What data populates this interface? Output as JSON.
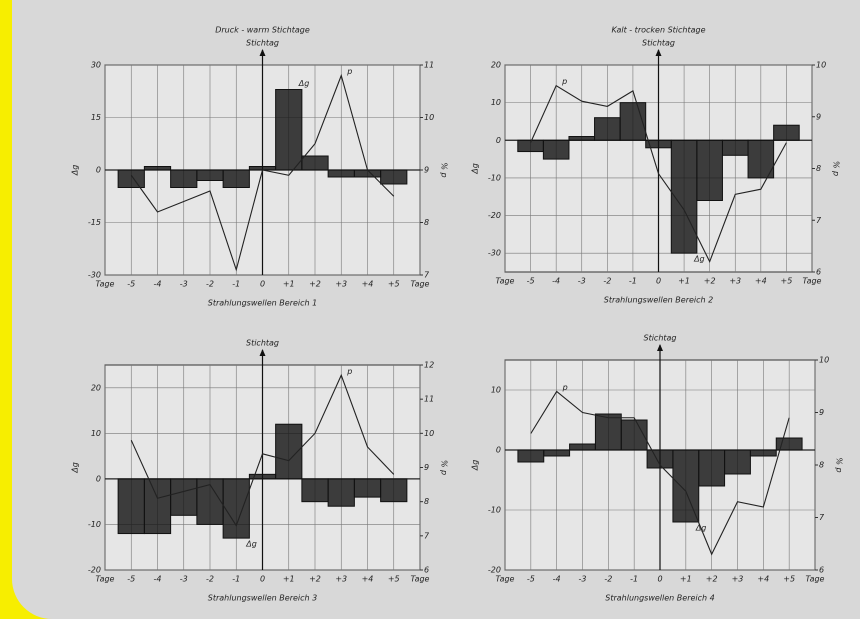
{
  "chart_data": [
    {
      "type": "line",
      "title": "Druck - warm  Stichtage",
      "marker": "Stichtag",
      "x_unit": "Tage",
      "ylabel": "Δg",
      "y2label": "% p",
      "caption": "Strahlungswellen  Bereich 1",
      "categories": [
        "-5",
        "-4",
        "-3",
        "-2",
        "-1",
        "0",
        "+1",
        "+2",
        "+3",
        "+4",
        "+5"
      ],
      "series": [
        {
          "name": "Δg",
          "color": "#111111",
          "values": [
            -5,
            1,
            -5,
            -3,
            -5,
            1,
            23,
            4,
            -2,
            -2,
            -4
          ]
        },
        {
          "name": "p",
          "color": "#222222",
          "axis": "y2",
          "values": [
            8.9,
            8.2,
            8.4,
            8.6,
            7.1,
            9.0,
            8.9,
            9.5,
            10.8,
            9.0,
            8.5
          ]
        }
      ],
      "ylim": [
        -30,
        30
      ],
      "yticks": [
        -30,
        -15,
        0,
        15,
        30
      ],
      "y2lim": [
        7,
        11
      ],
      "y2ticks": [
        7,
        8,
        9,
        10,
        11
      ],
      "grid": true
    },
    {
      "type": "line",
      "title": "Kalt - trocken  Stichtage",
      "marker": "Stichtag",
      "x_unit": "Tage",
      "ylabel": "Δg",
      "y2label": "% p",
      "caption": "Strahlungswellen  Bereich 2",
      "categories": [
        "-5",
        "-4",
        "-3",
        "-2",
        "-1",
        "0",
        "+1",
        "+2",
        "+3",
        "+4",
        "+5"
      ],
      "series": [
        {
          "name": "Δg",
          "color": "#111111",
          "values": [
            -3,
            -5,
            1,
            6,
            10,
            -2,
            -30,
            -16,
            -4,
            -10,
            4
          ]
        },
        {
          "name": "p",
          "color": "#222222",
          "axis": "y2",
          "values": [
            8.5,
            9.6,
            9.3,
            9.2,
            9.5,
            7.9,
            7.2,
            6.2,
            7.5,
            7.6,
            8.5
          ]
        }
      ],
      "ylim": [
        -35,
        20
      ],
      "yticks": [
        -30,
        -20,
        -10,
        0,
        10,
        20
      ],
      "y2lim": [
        6,
        10
      ],
      "y2ticks": [
        6,
        7,
        8,
        9,
        10
      ],
      "grid": true
    },
    {
      "type": "line",
      "marker": "Stichtag",
      "x_unit": "Tage",
      "ylabel": "Δg",
      "y2label": "% p",
      "caption": "Strahlungswellen  Bereich 3",
      "categories": [
        "-5",
        "-4",
        "-3",
        "-2",
        "-1",
        "0",
        "+1",
        "+2",
        "+3",
        "+4",
        "+5"
      ],
      "series": [
        {
          "name": "Δg",
          "color": "#111111",
          "values": [
            -12,
            -12,
            -8,
            -10,
            -13,
            1,
            12,
            -5,
            -6,
            -4,
            -5
          ]
        },
        {
          "name": "p",
          "color": "#222222",
          "axis": "y2",
          "values": [
            9.8,
            8.1,
            8.3,
            8.5,
            7.3,
            9.4,
            9.2,
            10.0,
            11.7,
            9.6,
            8.8
          ]
        }
      ],
      "ylim": [
        -20,
        25
      ],
      "yticks": [
        -20,
        -10,
        0,
        10,
        20
      ],
      "y2lim": [
        6,
        12
      ],
      "y2ticks": [
        6,
        7,
        8,
        9,
        10,
        11,
        12
      ],
      "grid": true
    },
    {
      "type": "line",
      "marker": "Stichtag",
      "x_unit": "Tage",
      "ylabel": "Δg",
      "y2label": "% p",
      "caption": "Strahlungswellen  Bereich 4",
      "categories": [
        "-5",
        "-4",
        "-3",
        "-2",
        "-1",
        "0",
        "+1",
        "+2",
        "+3",
        "+4",
        "+5"
      ],
      "series": [
        {
          "name": "Δg",
          "color": "#111111",
          "values": [
            -2,
            -1,
            1,
            6,
            5,
            -3,
            -12,
            -6,
            -4,
            -1,
            2
          ]
        },
        {
          "name": "p",
          "color": "#222222",
          "axis": "y2",
          "values": [
            8.6,
            9.4,
            9.0,
            8.9,
            8.9,
            8.0,
            7.5,
            6.3,
            7.3,
            7.2,
            8.9
          ]
        }
      ],
      "ylim": [
        -20,
        15
      ],
      "yticks": [
        -20,
        -10,
        0,
        10
      ],
      "y2lim": [
        6,
        10
      ],
      "y2ticks": [
        6,
        7,
        8,
        9,
        10
      ],
      "grid": true
    }
  ]
}
